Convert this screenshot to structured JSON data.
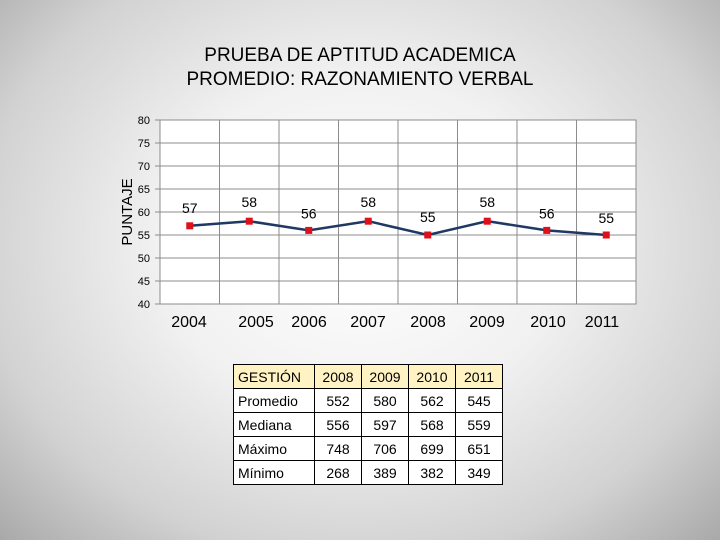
{
  "title": {
    "line1": "PRUEBA DE APTITUD ACADEMICA",
    "line2": "PROMEDIO: RAZONAMIENTO VERBAL"
  },
  "chart_data": {
    "type": "line",
    "title": "PRUEBA DE APTITUD ACADEMICA PROMEDIO: RAZONAMIENTO VERBAL",
    "xlabel": "",
    "ylabel": "PUNTAJE",
    "categories": [
      "2004",
      "2005",
      "2006",
      "2007",
      "2008",
      "2009",
      "2010",
      "2011"
    ],
    "series": [
      {
        "values": [
          57,
          58,
          56,
          58,
          55,
          58,
          56,
          55
        ]
      }
    ],
    "data_labels": [
      "57",
      "58",
      "56",
      "58",
      "55",
      "58",
      "56",
      "55"
    ],
    "ylim": [
      40,
      80
    ],
    "yticks": [
      40,
      45,
      50,
      55,
      60,
      65,
      70,
      75,
      80
    ],
    "grid": true,
    "legend": "none",
    "line_color": "#1f3864",
    "marker_color": "#e0101a"
  },
  "table": {
    "header": [
      "GESTIÓN",
      "2008",
      "2009",
      "2010",
      "2011"
    ],
    "rows": [
      [
        "Promedio",
        "552",
        "580",
        "562",
        "545"
      ],
      [
        "Mediana",
        "556",
        "597",
        "568",
        "559"
      ],
      [
        "Máximo",
        "748",
        "706",
        "699",
        "651"
      ],
      [
        "Mínimo",
        "268",
        "389",
        "382",
        "349"
      ]
    ],
    "header_color": "#fff3c4"
  }
}
